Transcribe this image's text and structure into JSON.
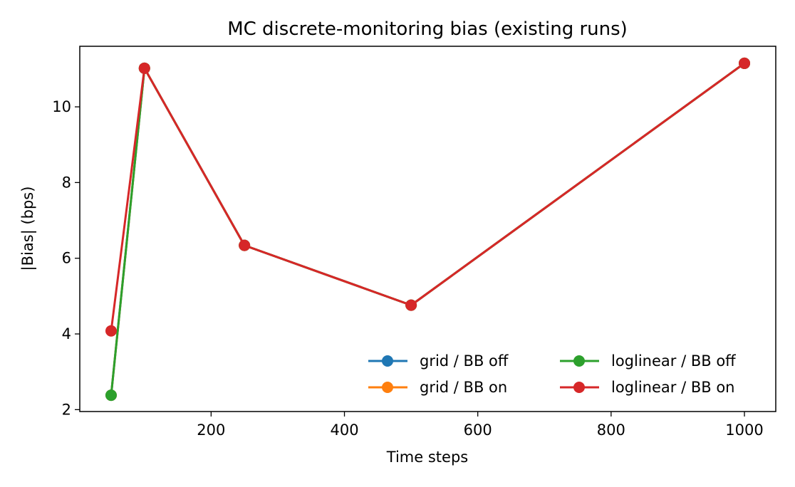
{
  "chart_data": {
    "type": "line",
    "title": "MC discrete-monitoring bias (existing runs)",
    "xlabel": "Time steps",
    "ylabel": "|Bias| (bps)",
    "xlim": [
      3,
      1047
    ],
    "ylim": [
      1.95,
      11.6
    ],
    "xticks": [
      200,
      400,
      600,
      800,
      1000
    ],
    "yticks": [
      2,
      4,
      6,
      8,
      10
    ],
    "grid": false,
    "legend": {
      "location": "lower-right",
      "columns": 2
    },
    "x": [
      50,
      100,
      250,
      500,
      1000
    ],
    "series": [
      {
        "name": "grid / BB off",
        "color": "#1f77b4",
        "values": [
          2.38,
          11.02,
          6.34,
          4.76,
          11.15
        ]
      },
      {
        "name": "grid / BB on",
        "color": "#ff7f0e",
        "values": [
          2.38,
          11.02,
          6.34,
          4.76,
          11.15
        ]
      },
      {
        "name": "loglinear / BB off",
        "color": "#2ca02c",
        "values": [
          2.38,
          11.02,
          6.34,
          4.76,
          11.15
        ]
      },
      {
        "name": "loglinear / BB on",
        "color": "#d62728",
        "values": [
          4.08,
          11.02,
          6.34,
          4.76,
          11.15
        ]
      }
    ]
  }
}
